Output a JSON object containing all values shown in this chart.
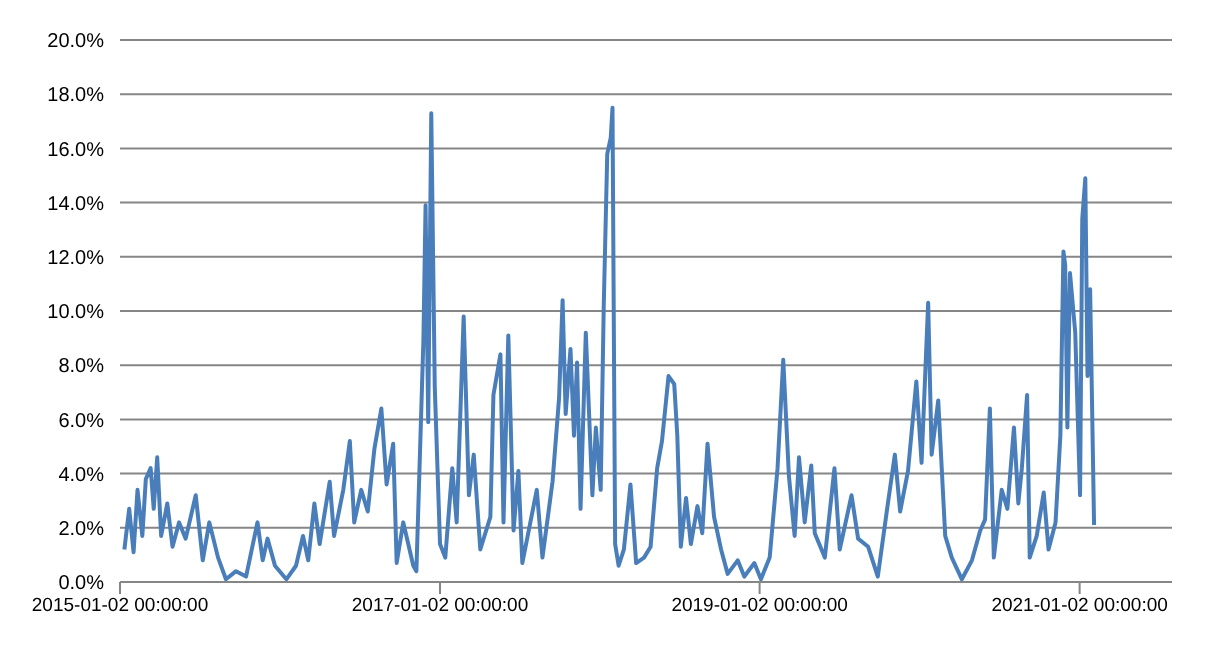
{
  "chart_data": {
    "type": "line",
    "x": [
      "2015-01-12",
      "2015-01-23",
      "2015-02-02",
      "2015-02-11",
      "2015-02-22",
      "2015-03-02",
      "2015-03-13",
      "2015-03-20",
      "2015-03-28",
      "2015-04-06",
      "2015-04-20",
      "2015-05-02",
      "2015-05-17",
      "2015-06-01",
      "2015-06-24",
      "2015-07-10",
      "2015-07-25",
      "2015-08-14",
      "2015-09-01",
      "2015-09-24",
      "2015-10-17",
      "2015-11-12",
      "2015-11-24",
      "2015-12-05",
      "2015-12-22",
      "2016-01-17",
      "2016-02-08",
      "2016-02-24",
      "2016-03-07",
      "2016-03-21",
      "2016-04-02",
      "2016-04-25",
      "2016-05-05",
      "2016-05-26",
      "2016-06-10",
      "2016-06-20",
      "2016-07-06",
      "2016-07-21",
      "2016-08-05",
      "2016-08-21",
      "2016-09-02",
      "2016-09-17",
      "2016-09-25",
      "2016-10-10",
      "2016-11-02",
      "2016-11-09",
      "2016-11-25",
      "2016-11-30",
      "2016-12-06",
      "2016-12-13",
      "2016-12-21",
      "2017-01-02",
      "2017-01-14",
      "2017-01-30",
      "2017-02-09",
      "2017-02-25",
      "2017-03-09",
      "2017-03-20",
      "2017-04-04",
      "2017-04-27",
      "2017-05-04",
      "2017-05-20",
      "2017-05-27",
      "2017-06-07",
      "2017-06-19",
      "2017-06-30",
      "2017-07-09",
      "2017-08-11",
      "2017-08-24",
      "2017-09-16",
      "2017-10-01",
      "2017-10-09",
      "2017-10-16",
      "2017-10-27",
      "2017-11-04",
      "2017-11-11",
      "2017-11-19",
      "2017-12-01",
      "2017-12-16",
      "2017-12-24",
      "2018-01-04",
      "2018-01-11",
      "2018-01-19",
      "2018-01-27",
      "2018-01-31",
      "2018-02-06",
      "2018-02-14",
      "2018-02-26",
      "2018-03-13",
      "2018-03-26",
      "2018-04-13",
      "2018-04-28",
      "2018-05-13",
      "2018-05-24",
      "2018-06-08",
      "2018-06-21",
      "2018-06-28",
      "2018-07-06",
      "2018-07-18",
      "2018-07-29",
      "2018-08-13",
      "2018-08-24",
      "2018-09-05",
      "2018-09-20",
      "2018-10-06",
      "2018-10-21",
      "2018-11-13",
      "2018-11-28",
      "2018-12-21",
      "2019-01-05",
      "2019-01-25",
      "2019-02-12",
      "2019-02-25",
      "2019-03-10",
      "2019-03-23",
      "2019-04-02",
      "2019-04-15",
      "2019-04-30",
      "2019-05-08",
      "2019-05-31",
      "2019-06-22",
      "2019-07-04",
      "2019-07-31",
      "2019-08-15",
      "2019-09-07",
      "2019-09-29",
      "2019-10-22",
      "2019-11-07",
      "2019-11-19",
      "2019-12-07",
      "2019-12-26",
      "2020-01-07",
      "2020-01-22",
      "2020-01-30",
      "2020-02-14",
      "2020-03-01",
      "2020-03-16",
      "2020-04-08",
      "2020-05-01",
      "2020-05-20",
      "2020-05-31",
      "2020-06-11",
      "2020-06-20",
      "2020-07-08",
      "2020-07-21",
      "2020-08-05",
      "2020-08-15",
      "2020-08-23",
      "2020-09-04",
      "2020-09-10",
      "2020-09-26",
      "2020-10-12",
      "2020-10-23",
      "2020-11-08",
      "2020-11-19",
      "2020-11-26",
      "2020-11-30",
      "2020-12-05",
      "2020-12-11",
      "2020-12-23",
      "2021-01-03",
      "2021-01-08",
      "2021-01-15",
      "2021-01-20",
      "2021-01-26",
      "2021-02-04"
    ],
    "series": [
      {
        "color": "#4a7ebb",
        "values": [
          1.2,
          2.7,
          1.1,
          3.4,
          1.7,
          3.8,
          4.2,
          2.7,
          4.6,
          1.7,
          2.9,
          1.3,
          2.2,
          1.6,
          3.2,
          0.8,
          2.2,
          0.9,
          0.1,
          0.4,
          0.2,
          2.2,
          0.8,
          1.6,
          0.6,
          0.1,
          0.6,
          1.7,
          0.8,
          2.9,
          1.4,
          3.7,
          1.7,
          3.4,
          5.2,
          2.2,
          3.4,
          2.6,
          4.9,
          6.4,
          3.6,
          5.1,
          0.7,
          2.2,
          0.6,
          0.4,
          8.9,
          13.9,
          5.9,
          17.3,
          7.2,
          1.4,
          0.9,
          4.2,
          2.2,
          9.8,
          3.2,
          4.7,
          1.2,
          2.4,
          6.9,
          8.4,
          2.2,
          9.1,
          1.9,
          4.1,
          0.7,
          3.4,
          0.9,
          3.7,
          6.8,
          10.4,
          6.2,
          8.6,
          5.4,
          8.1,
          2.7,
          9.2,
          3.2,
          5.7,
          3.4,
          10.2,
          15.8,
          16.4,
          17.5,
          1.4,
          0.6,
          1.2,
          3.6,
          0.7,
          0.9,
          1.3,
          4.2,
          5.2,
          7.6,
          7.3,
          5.4,
          1.3,
          3.1,
          1.4,
          2.8,
          1.8,
          5.1,
          2.4,
          1.2,
          0.3,
          0.8,
          0.2,
          0.7,
          0.1,
          0.9,
          4.2,
          8.2,
          3.9,
          1.7,
          4.6,
          2.2,
          4.3,
          1.8,
          0.9,
          4.2,
          1.2,
          3.2,
          1.6,
          1.3,
          0.2,
          2.9,
          4.7,
          2.6,
          4.1,
          7.4,
          4.4,
          10.3,
          4.7,
          6.7,
          1.7,
          0.9,
          0.1,
          0.8,
          1.9,
          2.3,
          6.4,
          0.9,
          3.4,
          2.7,
          5.7,
          2.9,
          4.2,
          6.9,
          0.9,
          1.7,
          3.3,
          1.2,
          2.2,
          5.4,
          12.2,
          11.7,
          5.7,
          11.4,
          9.2,
          3.2,
          13.4,
          14.9,
          7.6,
          10.8,
          2.1
        ]
      }
    ],
    "xlim": [
      "2015-01-02",
      "2021-08-01"
    ],
    "xticks": [
      {
        "value": "2015-01-02",
        "label": "2015-01-02 00:00:00"
      },
      {
        "value": "2017-01-02",
        "label": "2017-01-02 00:00:00"
      },
      {
        "value": "2019-01-02",
        "label": "2019-01-02 00:00:00"
      },
      {
        "value": "2021-01-02",
        "label": "2021-01-02 00:00:00"
      }
    ],
    "ylim": [
      0,
      20
    ],
    "yticks": [
      {
        "value": 0,
        "label": "0.0%"
      },
      {
        "value": 2,
        "label": "2.0%"
      },
      {
        "value": 4,
        "label": "4.0%"
      },
      {
        "value": 6,
        "label": "6.0%"
      },
      {
        "value": 8,
        "label": "8.0%"
      },
      {
        "value": 10,
        "label": "10.0%"
      },
      {
        "value": 12,
        "label": "12.0%"
      },
      {
        "value": 14,
        "label": "14.0%"
      },
      {
        "value": 16,
        "label": "16.0%"
      },
      {
        "value": 18,
        "label": "18.0%"
      },
      {
        "value": 20,
        "label": "20.0%"
      }
    ],
    "grid": "y",
    "marker": "none",
    "line_style": "solid"
  }
}
